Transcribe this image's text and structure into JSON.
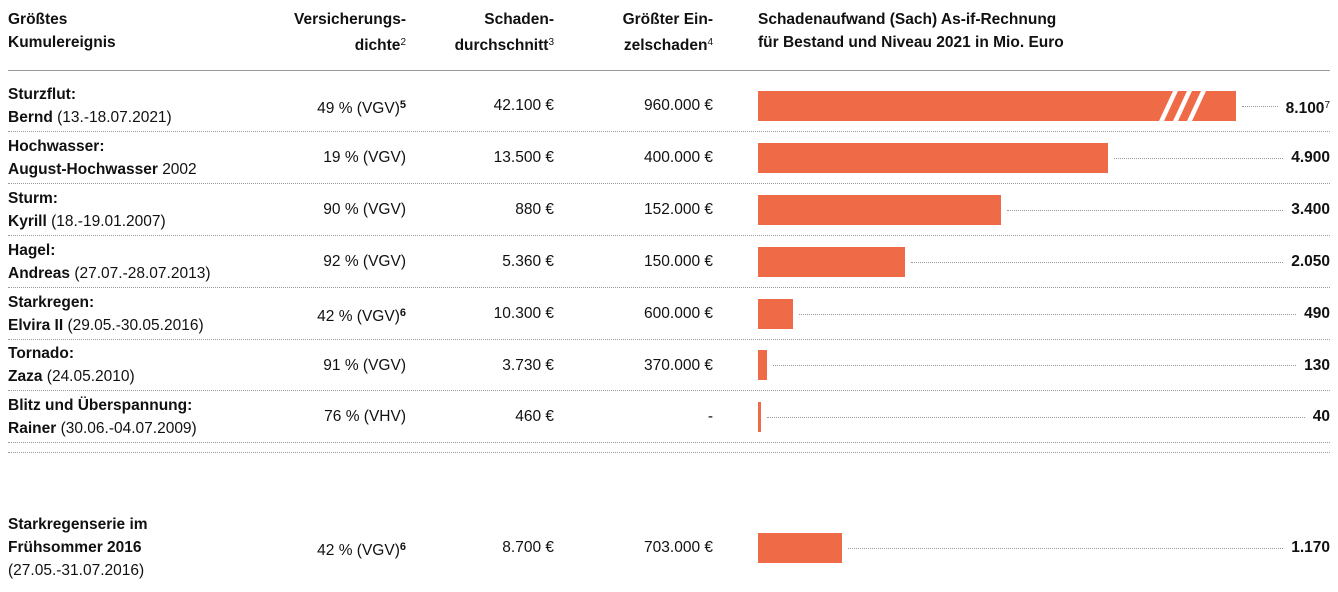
{
  "header": {
    "columns": [
      {
        "lines": [
          "Größtes",
          "Kumulereignis"
        ]
      },
      {
        "lines": [
          "Versicherungs-",
          "dichte"
        ],
        "note": "2"
      },
      {
        "lines": [
          "Schaden-",
          "durchschnitt"
        ],
        "note": "3"
      },
      {
        "lines": [
          "Größter Ein-",
          "zelschaden"
        ],
        "note": "4"
      },
      {
        "lines": [
          "Schadenaufwand (Sach) As-if-Rechnung",
          "für Bestand und Niveau 2021 in Mio. Euro"
        ]
      }
    ]
  },
  "bar_color": "#ef6a46",
  "table": {
    "rows": [
      {
        "title": "Sturzflut:",
        "name": "Bernd",
        "date": "(13.-18.07.2021)",
        "density": "49 % (VGV)",
        "density_note": "5",
        "average": "42.100 €",
        "largest": "960.000 €",
        "damage": {
          "value": 8100,
          "label": "8.100"
        },
        "damage_note": "7",
        "broken": true
      },
      {
        "title": "Hochwasser:",
        "name": "August-Hochwasser",
        "date": "2002",
        "density": "19 % (VGV)",
        "average": "13.500 €",
        "largest": "400.000 €",
        "damage": {
          "value": 4900,
          "label": "4.900"
        }
      },
      {
        "title": "Sturm:",
        "name": "Kyrill",
        "date": "(18.-19.01.2007)",
        "density": "90 % (VGV)",
        "average": "880 €",
        "largest": "152.000 €",
        "damage": {
          "value": 3400,
          "label": "3.400"
        }
      },
      {
        "title": "Hagel:",
        "name": "Andreas",
        "date": "(27.07.-28.07.2013)",
        "density": "92 % (VGV)",
        "average": "5.360 €",
        "largest": "150.000 €",
        "damage": {
          "value": 2050,
          "label": "2.050"
        }
      },
      {
        "title": "Starkregen:",
        "name": "Elvira II",
        "date": "(29.05.-30.05.2016)",
        "density": "42 % (VGV)",
        "density_note": "6",
        "average": "10.300 €",
        "largest": "600.000 €",
        "damage": {
          "value": 490,
          "label": "490"
        }
      },
      {
        "title": "Tornado:",
        "name": "Zaza",
        "date": "(24.05.2010)",
        "density": "91 % (VGV)",
        "average": "3.730 €",
        "largest": "370.000 €",
        "damage": {
          "value": 130,
          "label": "130"
        }
      },
      {
        "title": "Blitz und Überspannung:",
        "name": "Rainer",
        "date": "(30.06.-04.07.2009)",
        "density": "76 % (VHV)",
        "average": "460 €",
        "largest": "-",
        "damage": {
          "value": 40,
          "label": "40"
        }
      },
      {
        "title": "Starkregenserie im Frühsommer 2016",
        "date": "(27.05.-31.07.2016)",
        "density": "42 % (VGV)",
        "density_note": "6",
        "average": "8.700 €",
        "largest": "703.000 €",
        "damage": {
          "value": 1170,
          "label": "1.170"
        }
      }
    ]
  }
}
